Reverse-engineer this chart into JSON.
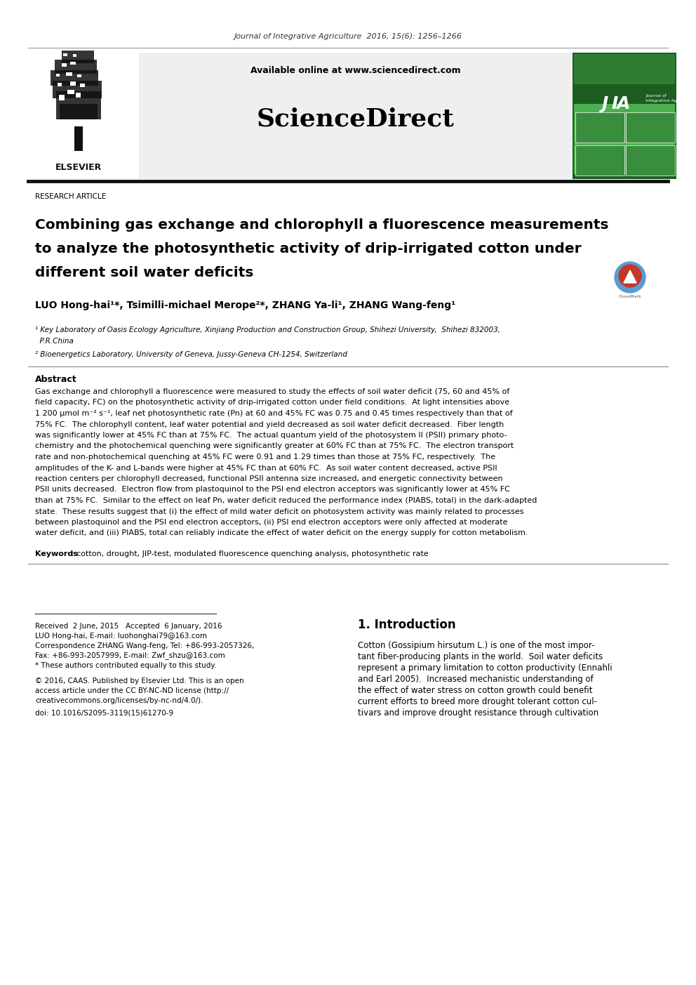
{
  "journal_line": "Journal of Integrative Agriculture  2016, 15(6): 1256–1266",
  "available_online": "Available online at www.sciencedirect.com",
  "sciencedirect": "ScienceDirect",
  "research_article": "RESEARCH ARTICLE",
  "title_line1": "Combining gas exchange and chlorophyll a fluorescence measurements",
  "title_line2": "to analyze the photosynthetic activity of drip-irrigated cotton under",
  "title_line3": "different soil water deficits",
  "authors": "LUO Hong-hai¹*, Tsimilli-michael Merope²*, ZHANG Ya-li¹, ZHANG Wang-feng¹",
  "affil1": "¹ Key Laboratory of Oasis Ecology Agriculture, Xinjiang Production and Construction Group, Shihezi University,  Shihezi 832003,",
  "affil1b": "  P.R.China",
  "affil2": "² Bioenergetics Laboratory, University of Geneva, Jussy-Geneva CH-1254, Switzerland",
  "abstract_title": "Abstract",
  "keywords_label": "Keywords",
  "keywords_rest": ": cotton, drought, JIP-test, modulated fluorescence quenching analysis, photosynthetic rate",
  "intro_title": "1. Introduction",
  "received": "Received  2 June, 2015   Accepted  6 January, 2016",
  "corr1": "LUO Hong-hai, E-mail: luohonghai79@163.com",
  "corr2": "Correspondence ZHANG Wang-feng, Tel: +86-993-2057326,",
  "corr3": "Fax: +86-993-2057999, E-mail: Zwf_shzu@163.com",
  "equal": "* These authors contributed equally to this study.",
  "copy1": "© 2016, CAAS. Published by Elsevier Ltd. This is an open",
  "copy2": "access article under the CC BY-NC-ND license (http://",
  "copy3": "creativecommons.org/licenses/by-nc-nd/4.0/).",
  "doi": "doi: 10.1016/S2095-3119(15)61270-9",
  "abstract_lines": [
    "Gas exchange and chlorophyll a fluorescence were measured to study the effects of soil water deficit (75, 60 and 45% of",
    "field capacity, FC) on the photosynthetic activity of drip-irrigated cotton under field conditions.  At light intensities above",
    "1 200 μmol m⁻² s⁻¹, leaf net photosynthetic rate (Pn) at 60 and 45% FC was 0.75 and 0.45 times respectively than that of",
    "75% FC.  The chlorophyll content, leaf water potential and yield decreased as soil water deficit decreased.  Fiber length",
    "was significantly lower at 45% FC than at 75% FC.  The actual quantum yield of the photosystem II (PSII) primary photo-",
    "chemistry and the photochemical quenching were significantly greater at 60% FC than at 75% FC.  The electron transport",
    "rate and non-photochemical quenching at 45% FC were 0.91 and 1.29 times than those at 75% FC, respectively.  The",
    "amplitudes of the K- and L-bands were higher at 45% FC than at 60% FC.  As soil water content decreased, active PSII",
    "reaction centers per chlorophyll decreased, functional PSII antenna size increased, and energetic connectivity between",
    "PSII units decreased.  Electron flow from plastoquinol to the PSI end electron acceptors was significantly lower at 45% FC",
    "than at 75% FC.  Similar to the effect on leaf Pn, water deficit reduced the performance index (PIABS, total) in the dark-adapted",
    "state.  These results suggest that (i) the effect of mild water deficit on photosystem activity was mainly related to processes",
    "between plastoquinol and the PSI end electron acceptors, (ii) PSI end electron acceptors were only affected at moderate",
    "water deficit, and (iii) PIABS, total can reliably indicate the effect of water deficit on the energy supply for cotton metabolism."
  ],
  "intro_lines": [
    "Cotton (Gossipium hirsutum L.) is one of the most impor-",
    "tant fiber-producing plants in the world.  Soil water deficits",
    "represent a primary limitation to cotton productivity (Ennahli",
    "and Earl 2005).  Increased mechanistic understanding of",
    "the effect of water stress on cotton growth could benefit",
    "current efforts to breed more drought tolerant cotton cul-",
    "tivars and improve drought resistance through cultivation"
  ],
  "bg": "#ffffff",
  "gray_bg": "#efefef",
  "green_dark": "#1b5e20",
  "black": "#000000",
  "gray_text": "#555555",
  "rule_color": "#aaaaaa",
  "thick_rule": "#111111"
}
